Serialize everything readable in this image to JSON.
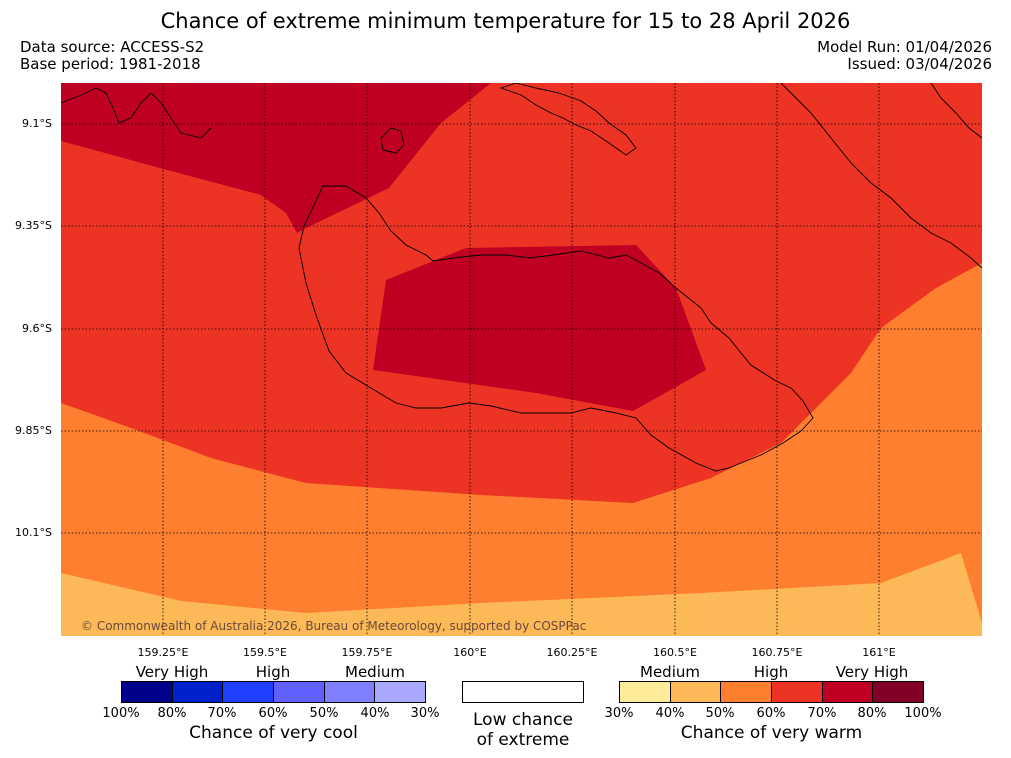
{
  "title": "Chance of extreme minimum temperature for 15 to 28 April 2026",
  "data_source": "Data source: ACCESS-S2",
  "base_period": "Base period: 1981-2018",
  "model_run": "Model Run: 01/04/2026",
  "issued": "Issued: 03/04/2026",
  "copyright": "© Commonwealth of Australia 2026, Bureau of Meteorology, supported by COSPPac",
  "lat_labels": [
    "9.1°S",
    "9.35°S",
    "9.6°S",
    "9.85°S",
    "10.1°S"
  ],
  "lon_labels": [
    "159.25°E",
    "159.5°E",
    "159.75°E",
    "160°E",
    "160.25°E",
    "160.5°E",
    "160.75°E",
    "161°E"
  ],
  "cool_legend": {
    "categories": [
      "Very High",
      "High",
      "Medium"
    ],
    "percentages": [
      "100%",
      "80%",
      "70%",
      "60%",
      "50%",
      "40%",
      "30%"
    ],
    "colors": [
      "#00008b",
      "#0020cc",
      "#2040ff",
      "#6060ff",
      "#8080ff",
      "#a8a8ff"
    ],
    "title": "Chance of very cool"
  },
  "neutral_legend": {
    "label_line1": "Low chance",
    "label_line2": "of extreme"
  },
  "warm_legend": {
    "categories": [
      "Medium",
      "High",
      "Very High"
    ],
    "percentages": [
      "30%",
      "40%",
      "50%",
      "60%",
      "70%",
      "80%",
      "100%"
    ],
    "colors": [
      "#ffeb99",
      "#fdb957",
      "#fd7f2f",
      "#ed3323",
      "#c00023",
      "#800026"
    ],
    "title": "Chance of very warm"
  },
  "map_colors": {
    "band_30_40": "#ffeb99",
    "band_40_50": "#fdb957",
    "band_50_60": "#fd7f2f",
    "band_60_70": "#ed3323",
    "band_70_80": "#c00023"
  }
}
